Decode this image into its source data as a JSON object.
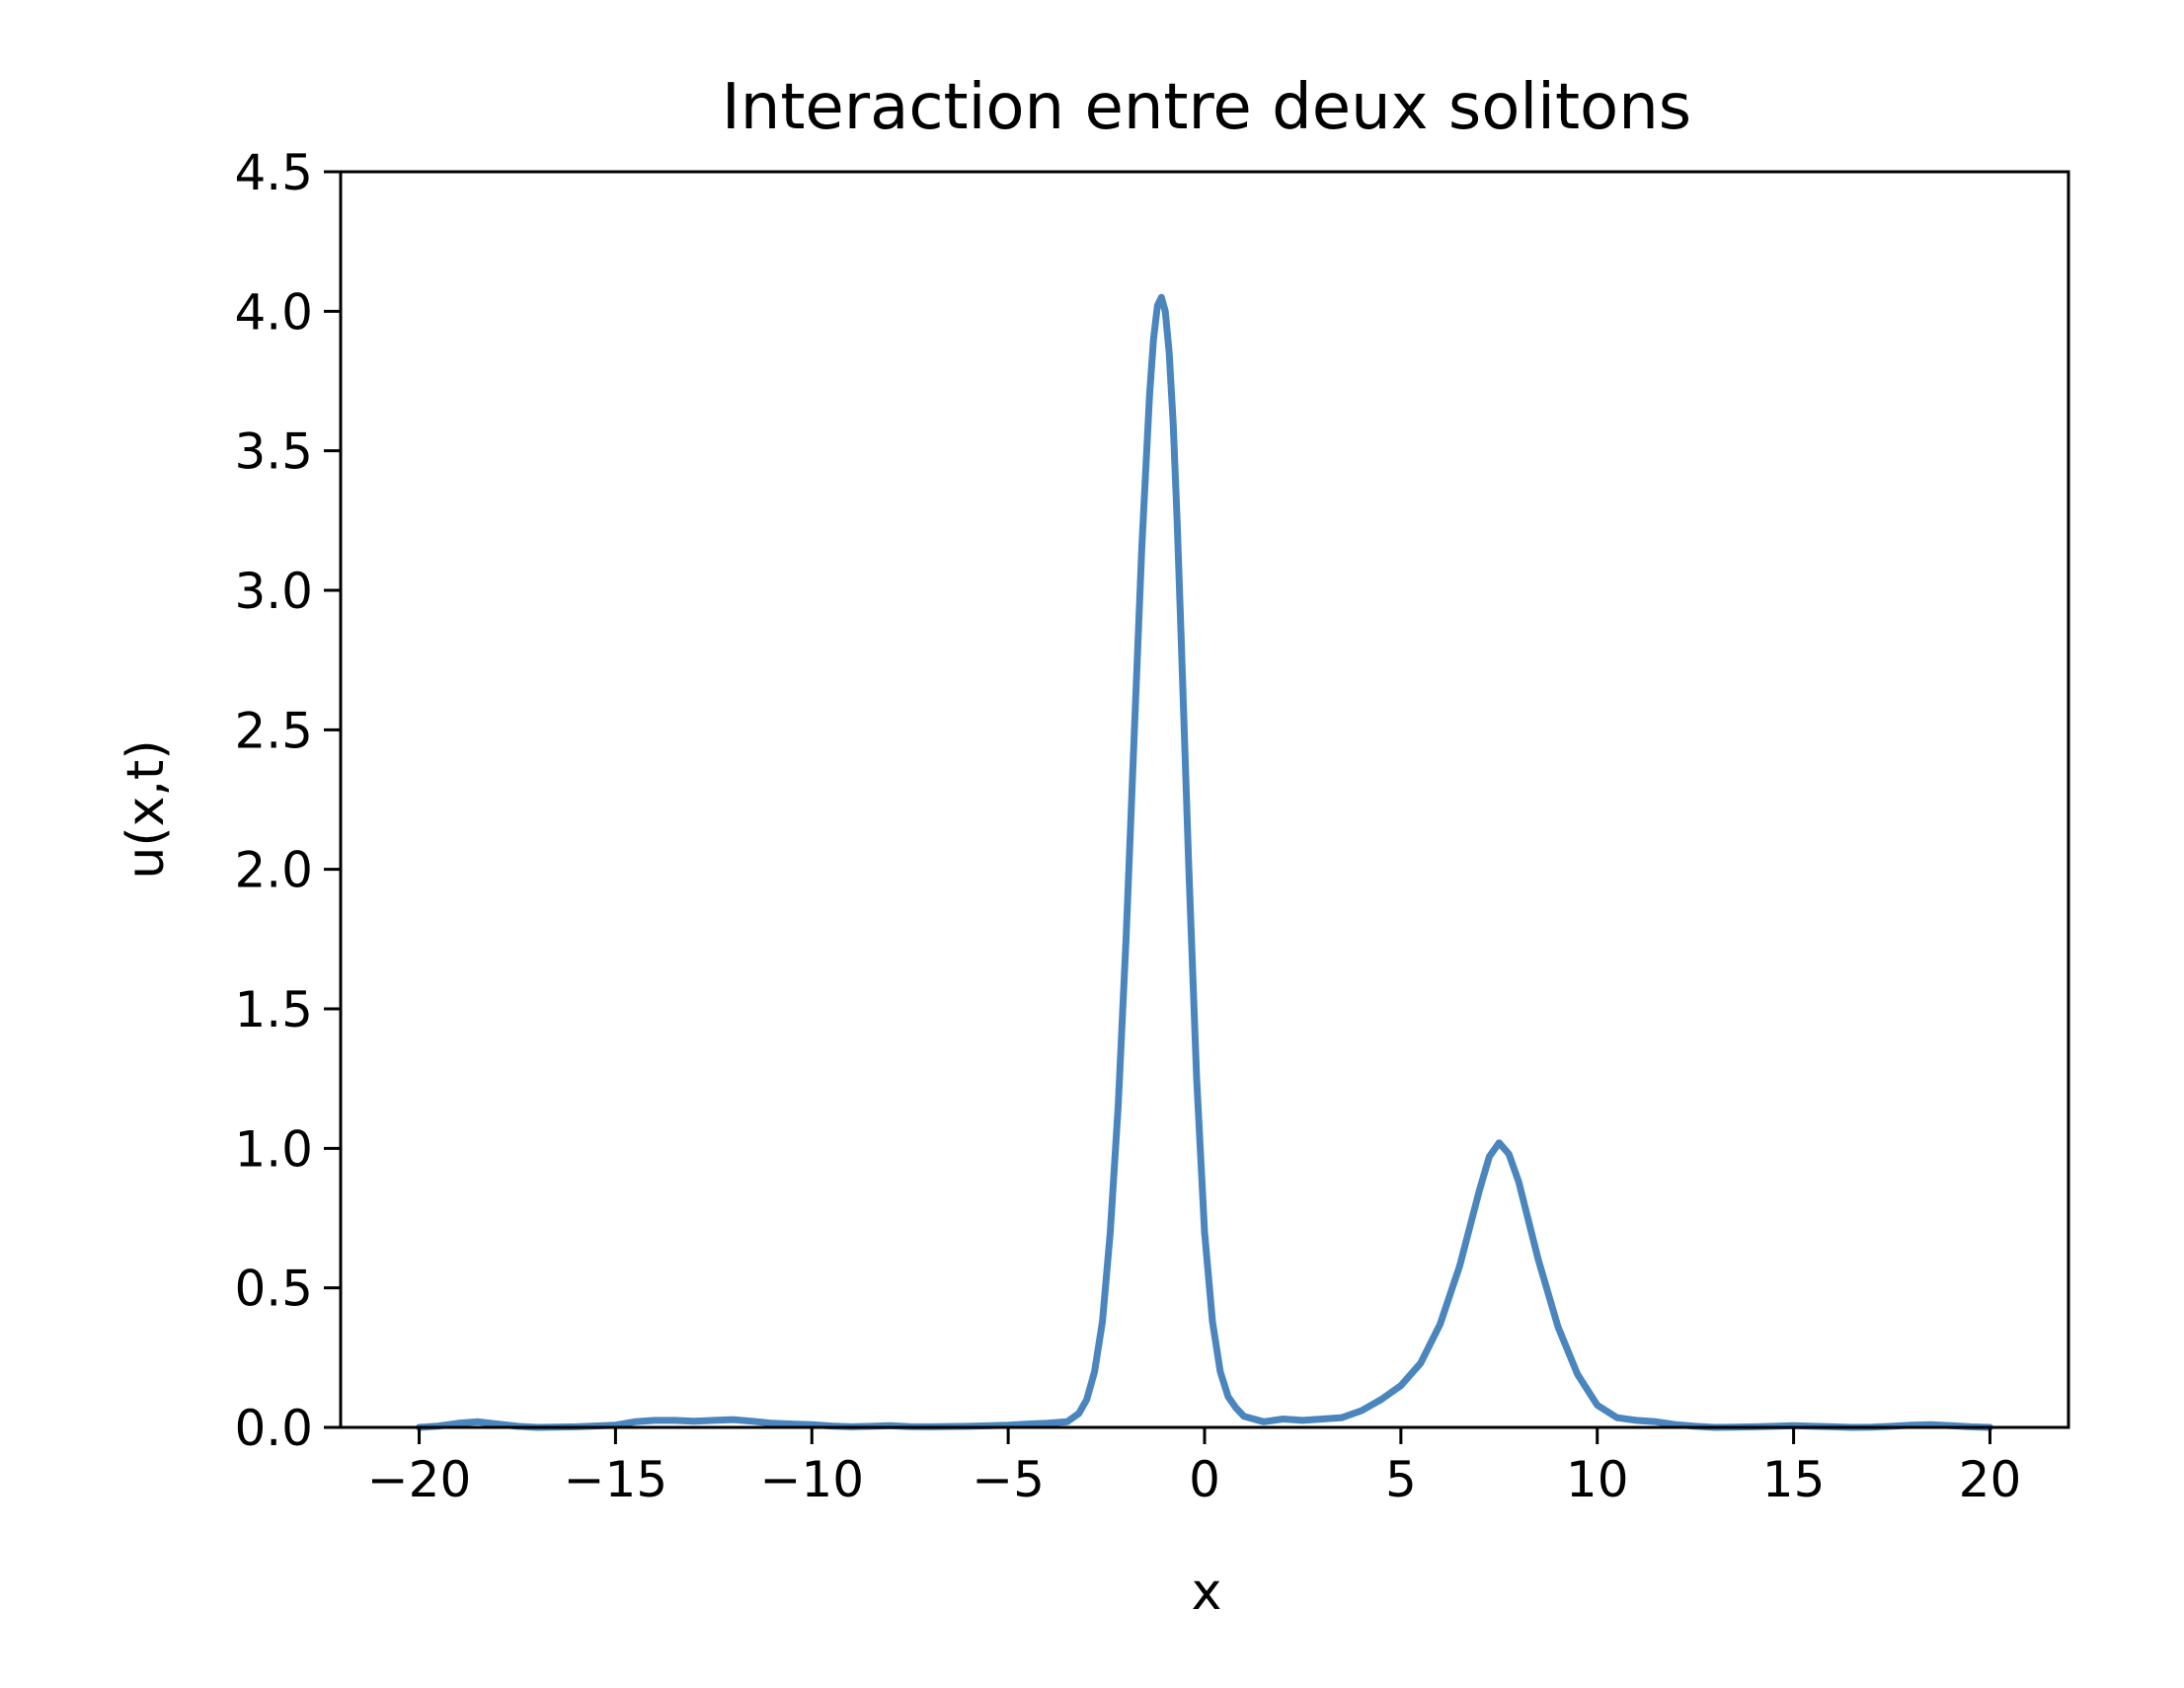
{
  "chart_data": {
    "type": "line",
    "title": "Interaction entre deux solitons",
    "xlabel": "x",
    "ylabel": "u(x,t)",
    "xlim": [
      -22,
      22
    ],
    "ylim": [
      0,
      4.5
    ],
    "x_ticks": [
      -20,
      -15,
      -10,
      -5,
      0,
      5,
      10,
      15,
      20
    ],
    "x_tick_labels": [
      "−20",
      "−15",
      "−10",
      "−5",
      "0",
      "5",
      "10",
      "15",
      "20"
    ],
    "y_ticks": [
      0.0,
      0.5,
      1.0,
      1.5,
      2.0,
      2.5,
      3.0,
      3.5,
      4.0,
      4.5
    ],
    "y_tick_labels": [
      "0.0",
      "0.5",
      "1.0",
      "1.5",
      "2.0",
      "2.5",
      "3.0",
      "3.5",
      "4.0",
      "4.5"
    ],
    "grid": false,
    "series": [
      {
        "color": "#4a86bd",
        "x": [
          -20,
          -19.5,
          -19,
          -18.5,
          -18,
          -17.5,
          -17,
          -16,
          -15,
          -14.5,
          -14,
          -13.5,
          -13,
          -12.5,
          -12,
          -11.5,
          -11,
          -10.5,
          -10,
          -9.5,
          -9,
          -8.5,
          -8,
          -7.5,
          -7,
          -6,
          -5,
          -4.5,
          -4,
          -3.5,
          -3.2,
          -3,
          -2.8,
          -2.6,
          -2.4,
          -2.2,
          -2,
          -1.8,
          -1.6,
          -1.4,
          -1.3,
          -1.2,
          -1.1,
          -1.0,
          -0.9,
          -0.8,
          -0.7,
          -0.6,
          -0.4,
          -0.2,
          0,
          0.2,
          0.4,
          0.6,
          0.8,
          1.0,
          1.5,
          2,
          2.5,
          3,
          3.5,
          4,
          4.5,
          5,
          5.5,
          6,
          6.5,
          7,
          7.25,
          7.5,
          7.75,
          8,
          8.5,
          9,
          9.5,
          10,
          10.5,
          11,
          11.5,
          12,
          12.5,
          13,
          13.5,
          14,
          14.5,
          15,
          15.5,
          16,
          16.5,
          17,
          17.5,
          18,
          18.5,
          19,
          19.5,
          20
        ],
        "y": [
          0.0,
          0.005,
          0.015,
          0.02,
          0.012,
          0.004,
          0.0,
          0.002,
          0.008,
          0.02,
          0.025,
          0.025,
          0.022,
          0.025,
          0.028,
          0.022,
          0.015,
          0.012,
          0.01,
          0.005,
          0.002,
          0.004,
          0.006,
          0.003,
          0.002,
          0.004,
          0.008,
          0.012,
          0.015,
          0.02,
          0.05,
          0.1,
          0.2,
          0.38,
          0.7,
          1.15,
          1.75,
          2.45,
          3.15,
          3.7,
          3.9,
          4.02,
          4.05,
          4.0,
          3.85,
          3.6,
          3.25,
          2.85,
          2.0,
          1.25,
          0.7,
          0.38,
          0.2,
          0.11,
          0.07,
          0.04,
          0.02,
          0.03,
          0.025,
          0.03,
          0.035,
          0.06,
          0.1,
          0.15,
          0.23,
          0.37,
          0.58,
          0.85,
          0.97,
          1.02,
          0.98,
          0.88,
          0.6,
          0.36,
          0.19,
          0.08,
          0.035,
          0.025,
          0.02,
          0.01,
          0.004,
          0.0,
          0.001,
          0.002,
          0.004,
          0.006,
          0.004,
          0.002,
          0.0,
          0.001,
          0.004,
          0.008,
          0.01,
          0.006,
          0.002,
          0.0
        ]
      }
    ]
  }
}
